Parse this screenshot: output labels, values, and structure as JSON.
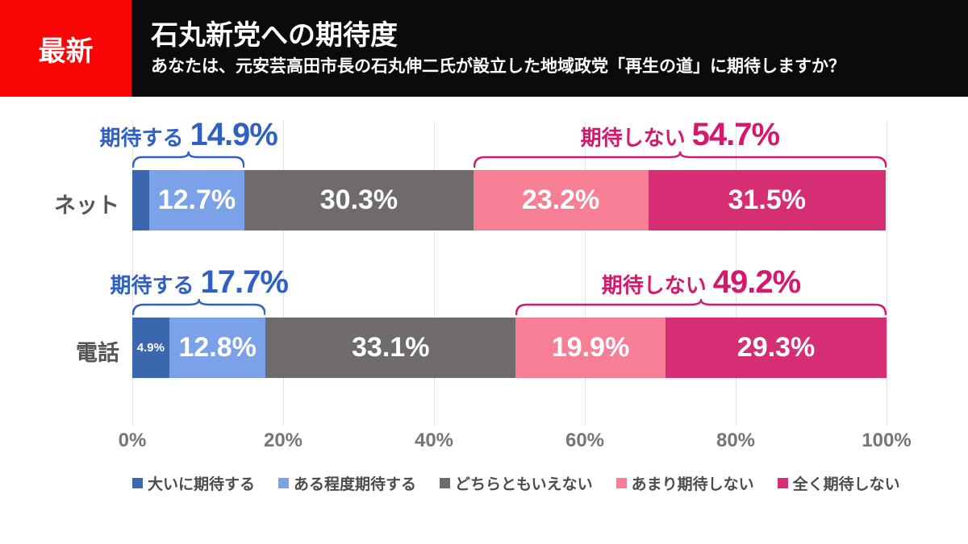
{
  "header": {
    "badge": "最新",
    "badge_bg": "#fa0505",
    "bar_bg": "#0b0b0b",
    "title": "石丸新党への期待度",
    "subtitle": "あなたは、元安芸高田市長の石丸伸二氏が設立した地域政党「再生の道」に期待しますか？"
  },
  "chart_data": {
    "type": "bar",
    "orientation": "horizontal-stacked",
    "title": "石丸新党への期待度",
    "categories": [
      "ネット",
      "電話"
    ],
    "series": [
      {
        "name": "大いに期待する",
        "color": "#3b67af",
        "values": [
          2.2,
          4.9
        ]
      },
      {
        "name": "ある程度期待する",
        "color": "#7ba1e8",
        "values": [
          12.7,
          12.8
        ]
      },
      {
        "name": "どちらともいえない",
        "color": "#6f6b6b",
        "values": [
          30.3,
          33.1
        ]
      },
      {
        "name": "あまり期待しない",
        "color": "#f77f95",
        "values": [
          23.2,
          19.9
        ]
      },
      {
        "name": "全く期待しない",
        "color": "#d62e74",
        "values": [
          31.5,
          29.3
        ]
      }
    ],
    "segment_labels": [
      [
        null,
        "12.7%",
        "30.3%",
        "23.2%",
        "31.5%"
      ],
      [
        "4.9%",
        "12.8%",
        "33.1%",
        "19.9%",
        "29.3%"
      ]
    ],
    "brackets": [
      {
        "row": 0,
        "label": "期待する",
        "value": "14.9%",
        "from": 0,
        "to": 14.9,
        "color": "#3060c2"
      },
      {
        "row": 0,
        "label": "期待しない",
        "value": "54.7%",
        "from": 45.2,
        "to": 100,
        "color": "#d6176e"
      },
      {
        "row": 1,
        "label": "期待する",
        "value": "17.7%",
        "from": 0,
        "to": 17.7,
        "color": "#3060c2"
      },
      {
        "row": 1,
        "label": "期待しない",
        "value": "49.2%",
        "from": 50.8,
        "to": 100,
        "color": "#d6176e"
      }
    ],
    "x_ticks": [
      "0%",
      "20%",
      "40%",
      "60%",
      "80%",
      "100%"
    ],
    "xlim": [
      0,
      100
    ],
    "grid": true,
    "legend_position": "bottom"
  }
}
